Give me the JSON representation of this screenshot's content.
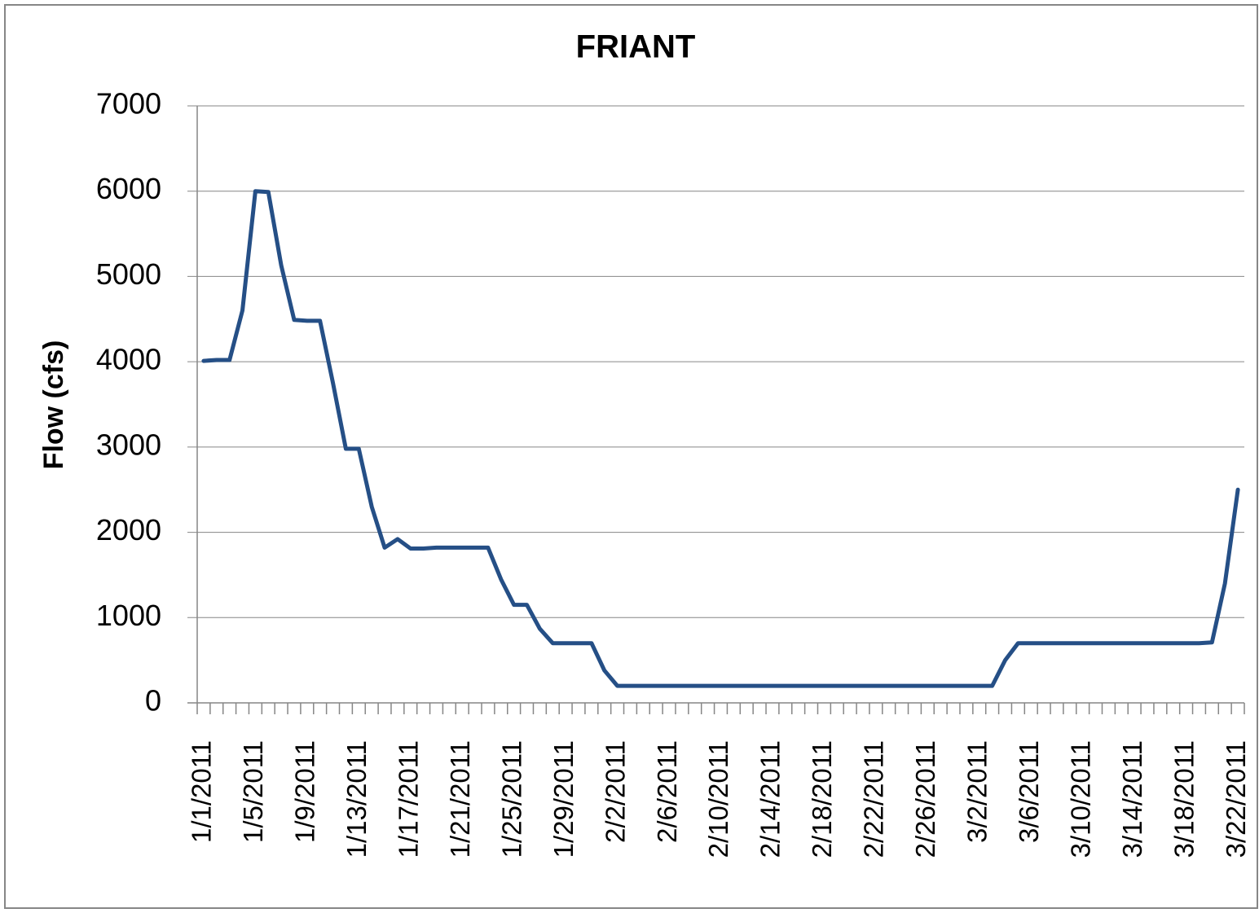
{
  "chart_data": {
    "type": "line",
    "title": "FRIANT",
    "y_label": "Flow (cfs)",
    "color": "#254f86",
    "categories": [
      "1/1/2011",
      null,
      null,
      null,
      "1/5/2011",
      null,
      null,
      null,
      "1/9/2011",
      null,
      null,
      null,
      "1/13/2011",
      null,
      null,
      null,
      "1/17/2011",
      null,
      null,
      null,
      "1/21/2011",
      null,
      null,
      null,
      "1/25/2011",
      null,
      null,
      null,
      "1/29/2011",
      null,
      null,
      null,
      "2/2/2011",
      null,
      null,
      null,
      "2/6/2011",
      null,
      null,
      null,
      "2/10/2011",
      null,
      null,
      null,
      "2/14/2011",
      null,
      null,
      null,
      "2/18/2011",
      null,
      null,
      null,
      "2/22/2011",
      null,
      null,
      null,
      "2/26/2011",
      null,
      null,
      null,
      "3/2/2011",
      null,
      null,
      null,
      "3/6/2011",
      null,
      null,
      null,
      "3/10/2011",
      null,
      null,
      null,
      "3/14/2011",
      null,
      null,
      null,
      "3/18/2011",
      null,
      null,
      null,
      "3/22/2011"
    ],
    "values": [
      4010,
      4020,
      4020,
      4600,
      6000,
      5990,
      5130,
      4490,
      4480,
      4480,
      3750,
      2980,
      2980,
      2300,
      1820,
      1920,
      1810,
      1810,
      1820,
      1820,
      1820,
      1820,
      1820,
      1450,
      1150,
      1150,
      870,
      700,
      700,
      700,
      700,
      380,
      200,
      200,
      200,
      200,
      200,
      200,
      200,
      200,
      200,
      200,
      200,
      200,
      200,
      200,
      200,
      200,
      200,
      200,
      200,
      200,
      200,
      200,
      200,
      200,
      200,
      200,
      200,
      200,
      200,
      200,
      500,
      700,
      700,
      700,
      700,
      700,
      700,
      700,
      700,
      700,
      700,
      700,
      700,
      700,
      700,
      700,
      710,
      1400,
      2500
    ],
    "ylim": [
      0,
      7000
    ],
    "yticks": [
      0,
      1000,
      2000,
      3000,
      4000,
      5000,
      6000,
      7000
    ],
    "grid": true
  }
}
